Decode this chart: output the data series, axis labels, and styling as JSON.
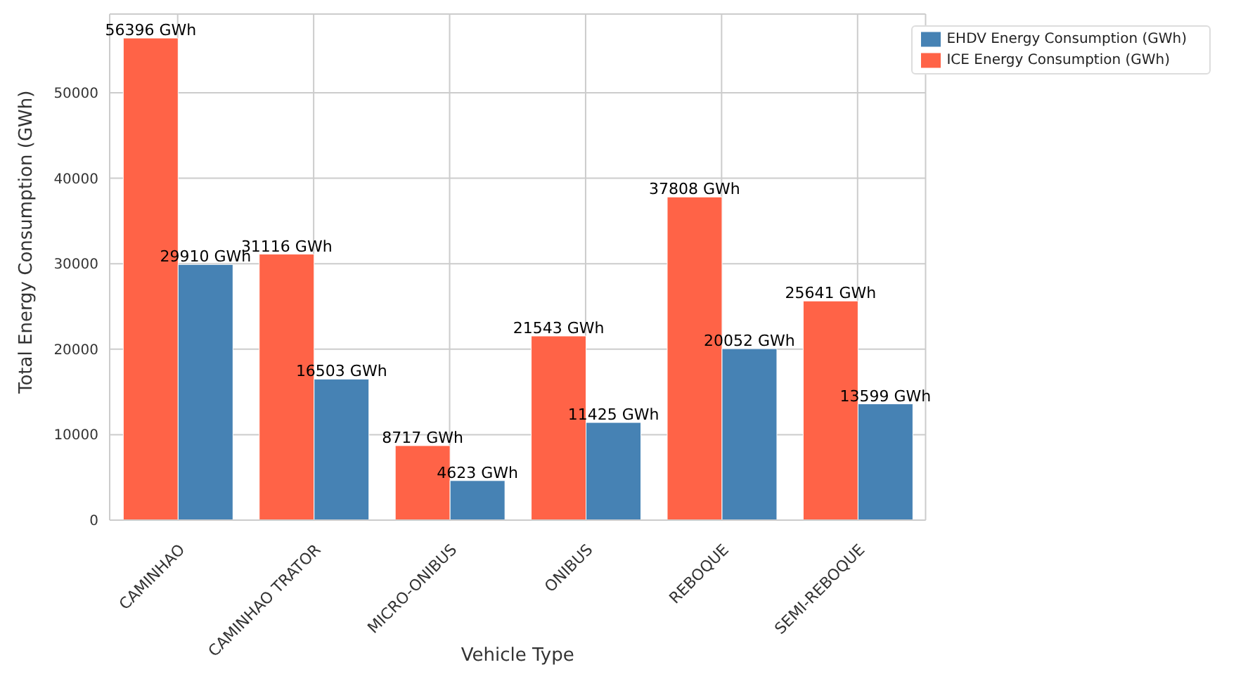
{
  "chart_data": {
    "type": "bar",
    "xlabel": "Vehicle Type",
    "ylabel": "Total Energy Consumption (GWh)",
    "categories": [
      "CAMINHAO",
      "CAMINHAO TRATOR",
      "MICRO-ONIBUS",
      "ONIBUS",
      "REBOQUE",
      "SEMI-REBOQUE"
    ],
    "series": [
      {
        "name": "ICE Energy Consumption (GWh)",
        "color": "#ff6347",
        "values": [
          56396,
          31116,
          8717,
          21543,
          37808,
          25641
        ],
        "value_labels": [
          "56396 GWh",
          "31116 GWh",
          "8717 GWh",
          "21543 GWh",
          "37808 GWh",
          "25641 GWh"
        ]
      },
      {
        "name": "EHDV Energy Consumption (GWh)",
        "color": "#4682b4",
        "values": [
          29910,
          16503,
          4623,
          11425,
          20052,
          13599
        ],
        "value_labels": [
          "29910 GWh",
          "16503 GWh",
          "4623 GWh",
          "11425 GWh",
          "20052 GWh",
          "13599 GWh"
        ]
      }
    ],
    "ylim": [
      0,
      59200
    ],
    "yticks": [
      0,
      10000,
      20000,
      30000,
      40000,
      50000
    ],
    "grid": true,
    "legend": "top right"
  }
}
